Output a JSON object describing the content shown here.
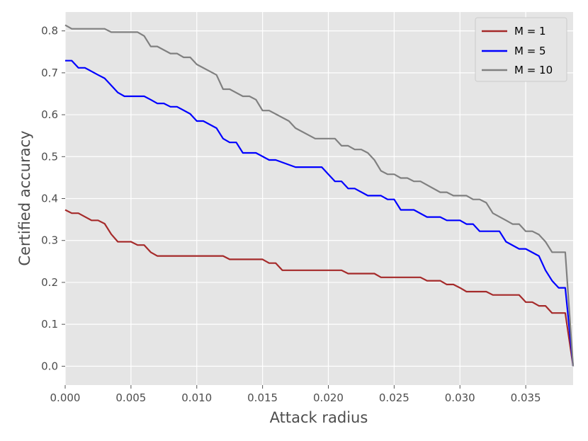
{
  "chart_data": {
    "type": "line",
    "title": "",
    "xlabel": "Attack radius",
    "ylabel": "Certified accuracy",
    "xlim": [
      0.0,
      0.0386
    ],
    "ylim": [
      -0.045,
      0.845
    ],
    "xticks": [
      0.0,
      0.005,
      0.01,
      0.015,
      0.02,
      0.025,
      0.03,
      0.035
    ],
    "xtick_labels": [
      "0.000",
      "0.005",
      "0.010",
      "0.015",
      "0.020",
      "0.025",
      "0.030",
      "0.035"
    ],
    "yticks": [
      0.0,
      0.1,
      0.2,
      0.3,
      0.4,
      0.5,
      0.6,
      0.7,
      0.8
    ],
    "ytick_labels": [
      "0.0",
      "0.1",
      "0.2",
      "0.3",
      "0.4",
      "0.5",
      "0.6",
      "0.7",
      "0.8"
    ],
    "grid": true,
    "style": "ggplot",
    "background_color": "#e5e5e5",
    "grid_color": "#ffffff",
    "legend_position": "top-right",
    "series": [
      {
        "name": "M = 1",
        "color": "#a52a2a",
        "points": [
          [
            0.0,
            0.373
          ],
          [
            0.0005,
            0.365
          ],
          [
            0.001,
            0.365
          ],
          [
            0.002,
            0.348
          ],
          [
            0.0025,
            0.348
          ],
          [
            0.003,
            0.34
          ],
          [
            0.0035,
            0.315
          ],
          [
            0.004,
            0.297
          ],
          [
            0.005,
            0.297
          ],
          [
            0.0055,
            0.289
          ],
          [
            0.006,
            0.289
          ],
          [
            0.0065,
            0.272
          ],
          [
            0.007,
            0.263
          ],
          [
            0.012,
            0.263
          ],
          [
            0.0125,
            0.255
          ],
          [
            0.015,
            0.255
          ],
          [
            0.0155,
            0.246
          ],
          [
            0.016,
            0.246
          ],
          [
            0.0165,
            0.229
          ],
          [
            0.021,
            0.229
          ],
          [
            0.0215,
            0.221
          ],
          [
            0.0235,
            0.221
          ],
          [
            0.024,
            0.212
          ],
          [
            0.027,
            0.212
          ],
          [
            0.0275,
            0.204
          ],
          [
            0.0285,
            0.204
          ],
          [
            0.029,
            0.195
          ],
          [
            0.0295,
            0.195
          ],
          [
            0.03,
            0.187
          ],
          [
            0.0305,
            0.178
          ],
          [
            0.032,
            0.178
          ],
          [
            0.0325,
            0.17
          ],
          [
            0.0345,
            0.17
          ],
          [
            0.035,
            0.153
          ],
          [
            0.0355,
            0.153
          ],
          [
            0.036,
            0.144
          ],
          [
            0.0365,
            0.144
          ],
          [
            0.037,
            0.127
          ],
          [
            0.038,
            0.127
          ],
          [
            0.0386,
            0.0
          ]
        ]
      },
      {
        "name": "M = 5",
        "color": "#0000ff",
        "points": [
          [
            0.0,
            0.729
          ],
          [
            0.0005,
            0.729
          ],
          [
            0.001,
            0.712
          ],
          [
            0.0015,
            0.712
          ],
          [
            0.0025,
            0.695
          ],
          [
            0.003,
            0.687
          ],
          [
            0.0035,
            0.67
          ],
          [
            0.004,
            0.653
          ],
          [
            0.0045,
            0.644
          ],
          [
            0.006,
            0.644
          ],
          [
            0.0065,
            0.636
          ],
          [
            0.007,
            0.627
          ],
          [
            0.0075,
            0.627
          ],
          [
            0.008,
            0.619
          ],
          [
            0.0085,
            0.619
          ],
          [
            0.0095,
            0.602
          ],
          [
            0.01,
            0.585
          ],
          [
            0.0105,
            0.585
          ],
          [
            0.0115,
            0.568
          ],
          [
            0.012,
            0.543
          ],
          [
            0.0125,
            0.534
          ],
          [
            0.013,
            0.534
          ],
          [
            0.0135,
            0.509
          ],
          [
            0.0145,
            0.509
          ],
          [
            0.0155,
            0.492
          ],
          [
            0.016,
            0.492
          ],
          [
            0.0175,
            0.475
          ],
          [
            0.0195,
            0.475
          ],
          [
            0.02,
            0.458
          ],
          [
            0.0205,
            0.441
          ],
          [
            0.021,
            0.441
          ],
          [
            0.0215,
            0.424
          ],
          [
            0.022,
            0.424
          ],
          [
            0.023,
            0.407
          ],
          [
            0.024,
            0.407
          ],
          [
            0.0245,
            0.398
          ],
          [
            0.025,
            0.398
          ],
          [
            0.0255,
            0.373
          ],
          [
            0.0265,
            0.373
          ],
          [
            0.0275,
            0.356
          ],
          [
            0.0285,
            0.356
          ],
          [
            0.029,
            0.348
          ],
          [
            0.03,
            0.348
          ],
          [
            0.0305,
            0.339
          ],
          [
            0.031,
            0.339
          ],
          [
            0.0315,
            0.322
          ],
          [
            0.033,
            0.322
          ],
          [
            0.0335,
            0.297
          ],
          [
            0.0345,
            0.28
          ],
          [
            0.035,
            0.28
          ],
          [
            0.036,
            0.263
          ],
          [
            0.0365,
            0.229
          ],
          [
            0.037,
            0.204
          ],
          [
            0.0375,
            0.187
          ],
          [
            0.038,
            0.187
          ],
          [
            0.0386,
            0.0
          ]
        ]
      },
      {
        "name": "M = 10",
        "color": "#808080",
        "points": [
          [
            0.0,
            0.814
          ],
          [
            0.0005,
            0.805
          ],
          [
            0.003,
            0.805
          ],
          [
            0.0035,
            0.797
          ],
          [
            0.0055,
            0.797
          ],
          [
            0.006,
            0.788
          ],
          [
            0.0065,
            0.763
          ],
          [
            0.007,
            0.763
          ],
          [
            0.008,
            0.746
          ],
          [
            0.0085,
            0.746
          ],
          [
            0.009,
            0.737
          ],
          [
            0.0095,
            0.737
          ],
          [
            0.01,
            0.72
          ],
          [
            0.0115,
            0.695
          ],
          [
            0.012,
            0.661
          ],
          [
            0.0125,
            0.661
          ],
          [
            0.0135,
            0.644
          ],
          [
            0.014,
            0.644
          ],
          [
            0.0145,
            0.636
          ],
          [
            0.015,
            0.61
          ],
          [
            0.0155,
            0.61
          ],
          [
            0.017,
            0.585
          ],
          [
            0.0175,
            0.568
          ],
          [
            0.019,
            0.543
          ],
          [
            0.0205,
            0.543
          ],
          [
            0.021,
            0.526
          ],
          [
            0.0215,
            0.526
          ],
          [
            0.022,
            0.517
          ],
          [
            0.0225,
            0.517
          ],
          [
            0.023,
            0.509
          ],
          [
            0.0235,
            0.492
          ],
          [
            0.024,
            0.466
          ],
          [
            0.0245,
            0.458
          ],
          [
            0.025,
            0.458
          ],
          [
            0.0255,
            0.449
          ],
          [
            0.026,
            0.449
          ],
          [
            0.0265,
            0.441
          ],
          [
            0.027,
            0.441
          ],
          [
            0.0285,
            0.415
          ],
          [
            0.029,
            0.415
          ],
          [
            0.0295,
            0.407
          ],
          [
            0.0305,
            0.407
          ],
          [
            0.031,
            0.398
          ],
          [
            0.0315,
            0.398
          ],
          [
            0.032,
            0.39
          ],
          [
            0.0325,
            0.365
          ],
          [
            0.0335,
            0.348
          ],
          [
            0.034,
            0.339
          ],
          [
            0.0345,
            0.339
          ],
          [
            0.035,
            0.322
          ],
          [
            0.0355,
            0.322
          ],
          [
            0.036,
            0.314
          ],
          [
            0.0365,
            0.297
          ],
          [
            0.037,
            0.272
          ],
          [
            0.038,
            0.272
          ],
          [
            0.0386,
            0.0
          ]
        ]
      }
    ]
  }
}
